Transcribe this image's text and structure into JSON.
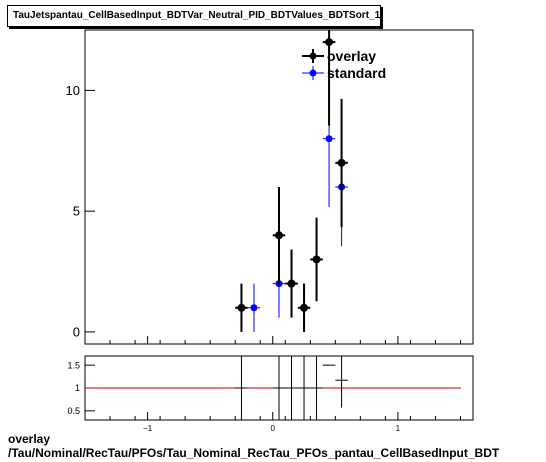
{
  "header": {
    "title": "TauJetspantau_CellBasedInput_BDTVar_Neutral_PID_BDTValues_BDTSort_1"
  },
  "footer": {
    "line1": "overlay",
    "line2": "/Tau/Nominal/RecTau/PFOs/Tau_Nominal_RecTau_PFOs_pantau_CellBasedInput_BDT"
  },
  "colors": {
    "overlay": "#000000",
    "standard": "#0000ff",
    "ratio_line": "#cc0000"
  },
  "chart_data": [
    {
      "type": "scatter",
      "xlim": [
        -1.5,
        1.6
      ],
      "ylim": [
        -0.5,
        12.5
      ],
      "yticks": [
        0,
        5,
        10
      ],
      "xticks": [
        -1,
        0,
        1
      ],
      "bin_halfwidth": 0.05,
      "legend": {
        "placement": "top-right"
      },
      "series": [
        {
          "name": "overlay",
          "x": [
            -0.25,
            0.05,
            0.15,
            0.25,
            0.35,
            0.45,
            0.55
          ],
          "values": [
            1,
            4,
            2,
            1,
            3,
            12,
            7
          ],
          "errors": [
            1,
            2,
            1.41,
            1,
            1.73,
            3.46,
            2.65
          ]
        },
        {
          "name": "standard",
          "x": [
            -0.15,
            0.05,
            0.45,
            0.55
          ],
          "values": [
            1,
            2,
            8,
            6
          ],
          "errors": [
            1,
            1.41,
            2.83,
            2.45
          ]
        }
      ]
    },
    {
      "type": "scatter",
      "xlim": [
        -1.5,
        1.6
      ],
      "ylim": [
        0.3,
        1.7
      ],
      "yticks": [
        0.5,
        1,
        1.5
      ],
      "xticks": [
        -1,
        0,
        1
      ],
      "reference_line": 1,
      "bin_halfwidth": 0.05,
      "series": [
        {
          "name": "ratio",
          "x": [
            -0.25,
            0.05,
            0.15,
            0.25,
            0.35,
            0.45,
            0.55
          ],
          "values": [
            1.0,
            1.0,
            1.0,
            1.0,
            1.0,
            1.5,
            1.17
          ],
          "errors": [
            1.0,
            1.0,
            1.0,
            1.0,
            1.0,
            0.0,
            0.6
          ]
        }
      ]
    }
  ]
}
